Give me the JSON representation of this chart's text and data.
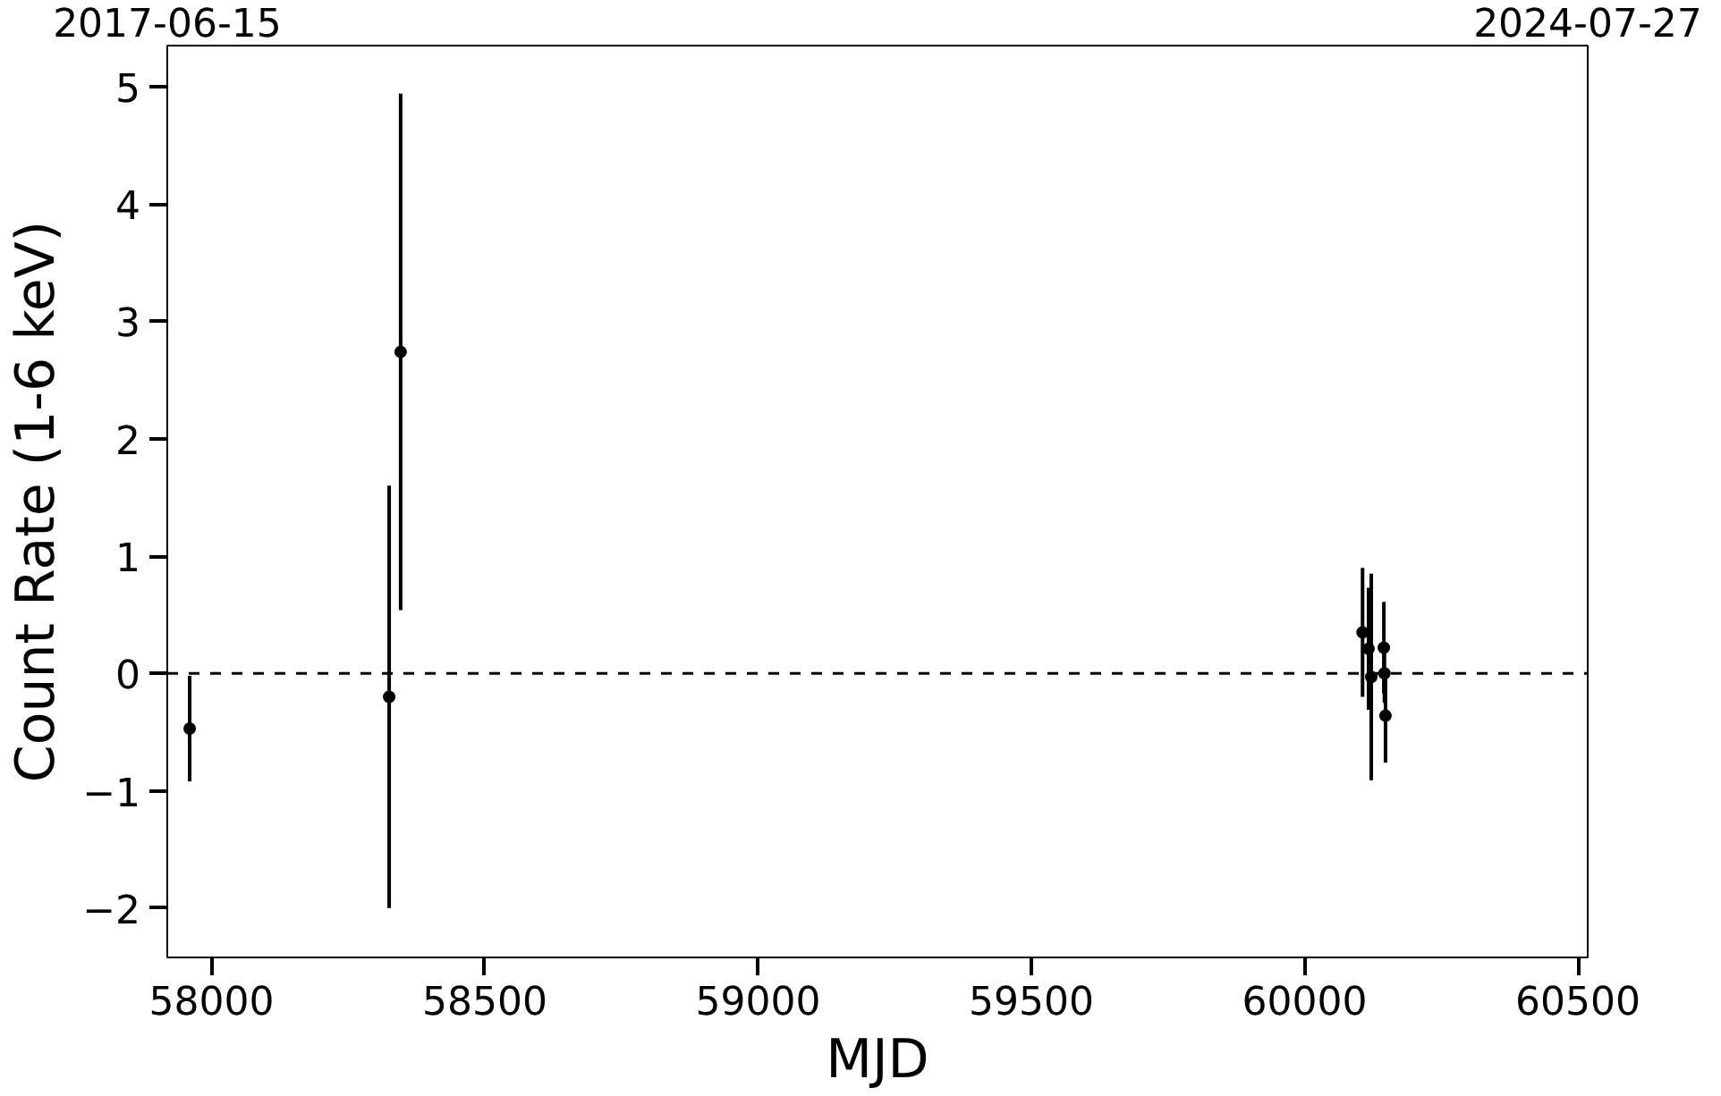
{
  "chart_data": {
    "type": "scatter",
    "xlabel": "MJD",
    "ylabel": "Count Rate (1-6 keV)",
    "x": [
      57960,
      58325,
      58346,
      60106,
      60117,
      60122,
      60145,
      60146,
      60148
    ],
    "series": [
      {
        "color": "#000000",
        "values": [
          -0.47,
          -0.2,
          2.74,
          0.35,
          0.21,
          -0.03,
          0.22,
          0.0,
          -0.36
        ],
        "errors": [
          0.45,
          1.8,
          2.2,
          0.55,
          0.52,
          0.88,
          0.39,
          0.25,
          0.4
        ]
      }
    ],
    "marker": "circle",
    "xlim": [
      57919,
      60518
    ],
    "ylim": [
      -2.42,
      5.35
    ],
    "xticks": [
      58000,
      58500,
      59000,
      59500,
      60000,
      60500
    ],
    "yticks": [
      -2,
      -1,
      0,
      1,
      2,
      3,
      4,
      5
    ],
    "x2lim": [
      "2017-06-15",
      "2024-07-27"
    ],
    "x2ticks": [
      "2017-06-15",
      "2024-07-27"
    ],
    "ref_lines": [
      {
        "axis": "y",
        "value": 0,
        "color": "#000000",
        "line_style": "dashed"
      }
    ],
    "grid": false
  }
}
